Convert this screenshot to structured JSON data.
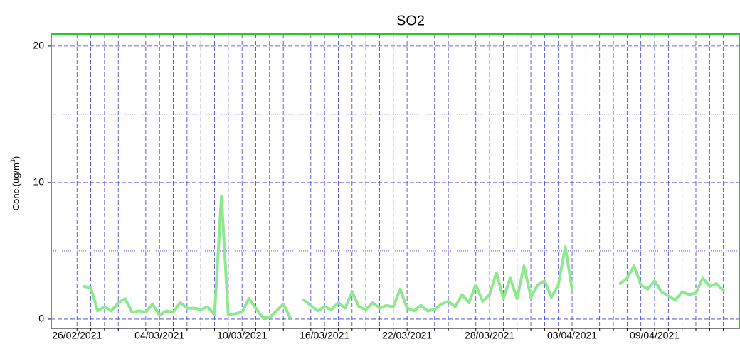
{
  "chart_data": {
    "type": "line",
    "title": "SO2",
    "y_label": {
      "text": "Conc.(ug/m",
      "sup": "3",
      "end": ")"
    },
    "color": "#8ee88e",
    "x": [
      "26/02/2021 12:00",
      "27/02/2021 00:00",
      "27/02/2021 12:00",
      "28/02/2021 00:00",
      "28/02/2021 12:00",
      "01/03/2021 00:00",
      "01/03/2021 12:00",
      "02/03/2021 00:00",
      "02/03/2021 12:00",
      "03/03/2021 00:00",
      "03/03/2021 12:00",
      "04/03/2021 00:00",
      "04/03/2021 12:00",
      "05/03/2021 00:00",
      "05/03/2021 12:00",
      "06/03/2021 00:00",
      "06/03/2021 12:00",
      "07/03/2021 00:00",
      "07/03/2021 12:00",
      "08/03/2021 00:00",
      "08/03/2021 12:00",
      "09/03/2021 00:00",
      "09/03/2021 12:00",
      "10/03/2021 00:00",
      "10/03/2021 12:00",
      "11/03/2021 00:00",
      "11/03/2021 12:00",
      "12/03/2021 00:00",
      "12/03/2021 12:00",
      "13/03/2021 00:00",
      "13/03/2021 12:00",
      "14/03/2021 00:00",
      "14/03/2021 12:00",
      "15/03/2021 00:00",
      "15/03/2021 12:00",
      "16/03/2021 00:00",
      "16/03/2021 12:00",
      "17/03/2021 00:00",
      "17/03/2021 12:00",
      "18/03/2021 00:00",
      "18/03/2021 12:00",
      "19/03/2021 00:00",
      "19/03/2021 12:00",
      "20/03/2021 00:00",
      "20/03/2021 12:00",
      "21/03/2021 00:00",
      "21/03/2021 12:00",
      "22/03/2021 00:00",
      "22/03/2021 12:00",
      "23/03/2021 00:00",
      "23/03/2021 12:00",
      "24/03/2021 00:00",
      "24/03/2021 12:00",
      "25/03/2021 00:00",
      "25/03/2021 12:00",
      "26/03/2021 00:00",
      "26/03/2021 12:00",
      "27/03/2021 00:00",
      "27/03/2021 12:00",
      "28/03/2021 00:00",
      "28/03/2021 12:00",
      "29/03/2021 00:00",
      "29/03/2021 12:00",
      "30/03/2021 00:00",
      "30/03/2021 12:00",
      "31/03/2021 00:00",
      "31/03/2021 12:00",
      "01/04/2021 00:00",
      "01/04/2021 12:00",
      "02/04/2021 00:00",
      "02/04/2021 12:00",
      "03/04/2021 00:00",
      "03/04/2021 12:00",
      "06/04/2021 12:00",
      "07/04/2021 00:00",
      "07/04/2021 12:00",
      "08/04/2021 00:00",
      "08/04/2021 12:00",
      "09/04/2021 00:00",
      "09/04/2021 12:00",
      "10/04/2021 00:00",
      "10/04/2021 12:00",
      "11/04/2021 00:00",
      "11/04/2021 12:00",
      "12/04/2021 00:00",
      "12/04/2021 12:00",
      "13/04/2021 00:00",
      "13/04/2021 12:00",
      "14/04/2021 00:00"
    ],
    "values": [
      2.4,
      2.3,
      0.6,
      0.9,
      0.6,
      1.2,
      1.5,
      0.5,
      0.6,
      0.5,
      1.1,
      0.3,
      0.6,
      0.5,
      1.2,
      0.8,
      0.8,
      0.7,
      0.9,
      0.3,
      9.0,
      0.3,
      0.4,
      0.5,
      1.5,
      0.8,
      0.1,
      0.1,
      0.6,
      1.1,
      0.1,
      null,
      1.4,
      1.0,
      0.6,
      0.9,
      0.7,
      1.2,
      0.8,
      2.0,
      0.9,
      0.7,
      1.2,
      0.8,
      1.0,
      0.9,
      2.2,
      0.8,
      0.6,
      1.0,
      0.6,
      0.7,
      1.1,
      1.3,
      0.9,
      1.8,
      1.2,
      2.5,
      1.3,
      1.8,
      3.4,
      1.5,
      3.0,
      1.5,
      3.9,
      1.6,
      2.5,
      2.8,
      1.6,
      2.5,
      5.3,
      2.2,
      null,
      2.6,
      3.0,
      3.9,
      2.5,
      2.2,
      2.8,
      2.0,
      1.7,
      1.4,
      2.0,
      1.8,
      1.9,
      3.0,
      2.4,
      2.6,
      2.1
    ],
    "xlim": [
      "24/02/2021 03:00",
      "15/04/2021 05:00"
    ],
    "xticks": [
      "26/02/2021",
      {
        "value": "27/02/2021",
        "label": null
      },
      {
        "value": "28/02/2021",
        "label": null
      },
      {
        "value": "01/03/2021",
        "label": null
      },
      {
        "value": "02/03/2021",
        "label": null
      },
      {
        "value": "03/03/2021",
        "label": null
      },
      "04/03/2021",
      {
        "value": "05/03/2021",
        "label": null
      },
      {
        "value": "06/03/2021",
        "label": null
      },
      {
        "value": "07/03/2021",
        "label": null
      },
      {
        "value": "08/03/2021",
        "label": null
      },
      {
        "value": "09/03/2021",
        "label": null
      },
      "10/03/2021",
      {
        "value": "11/03/2021",
        "label": null
      },
      {
        "value": "12/03/2021",
        "label": null
      },
      {
        "value": "13/03/2021",
        "label": null
      },
      {
        "value": "14/03/2021",
        "label": null
      },
      {
        "value": "15/03/2021",
        "label": null
      },
      "16/03/2021",
      {
        "value": "17/03/2021",
        "label": null
      },
      {
        "value": "18/03/2021",
        "label": null
      },
      {
        "value": "19/03/2021",
        "label": null
      },
      {
        "value": "20/03/2021",
        "label": null
      },
      {
        "value": "21/03/2021",
        "label": null
      },
      "22/03/2021",
      {
        "value": "23/03/2021",
        "label": null
      },
      {
        "value": "24/03/2021",
        "label": null
      },
      {
        "value": "25/03/2021",
        "label": null
      },
      {
        "value": "26/03/2021",
        "label": null
      },
      {
        "value": "27/03/2021",
        "label": null
      },
      "28/03/2021",
      {
        "value": "29/03/2021",
        "label": null
      },
      {
        "value": "30/03/2021",
        "label": null
      },
      {
        "value": "31/03/2021",
        "label": null
      },
      {
        "value": "01/04/2021",
        "label": null
      },
      {
        "value": "02/04/2021",
        "label": null
      },
      "03/04/2021",
      {
        "value": "04/04/2021",
        "label": null
      },
      {
        "value": "05/04/2021",
        "label": null
      },
      {
        "value": "06/04/2021",
        "label": null
      },
      {
        "value": "07/04/2021",
        "label": null
      },
      {
        "value": "08/04/2021",
        "label": null
      },
      "09/04/2021",
      {
        "value": "10/04/2021",
        "label": null
      },
      {
        "value": "11/04/2021",
        "label": null
      },
      {
        "value": "12/04/2021",
        "label": null
      },
      {
        "value": "13/04/2021",
        "label": null
      },
      {
        "value": "14/04/2021",
        "label": null
      }
    ],
    "ylim": [
      -0.68,
      20.88
    ],
    "yticks": [
      0,
      {
        "value": 5,
        "label": null
      },
      10,
      {
        "value": 15,
        "label": null
      },
      20
    ],
    "grid": true
  }
}
